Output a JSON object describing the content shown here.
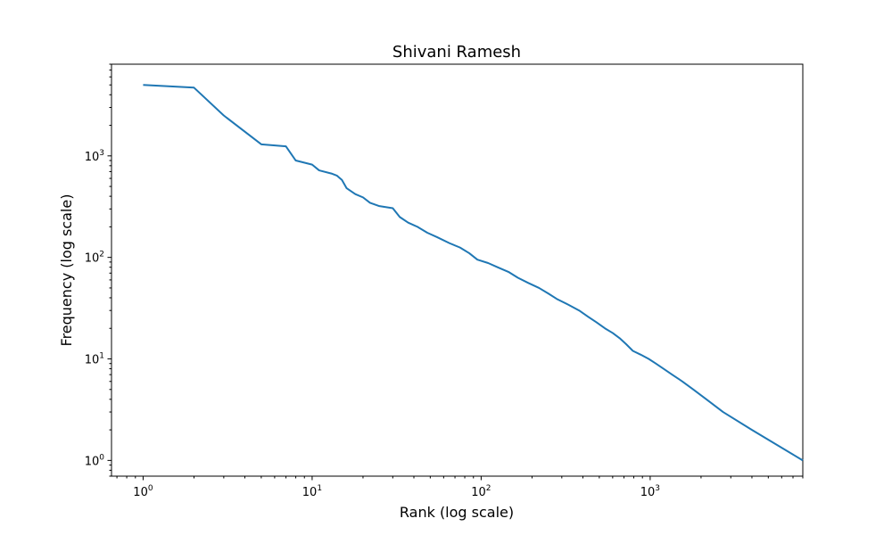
{
  "chart_data": {
    "type": "line",
    "title": "Shivani Ramesh",
    "xlabel": "Rank (log scale)",
    "ylabel": "Frequency (log scale)",
    "xscale": "log",
    "yscale": "log",
    "xlim": [
      0.65,
      8000
    ],
    "ylim": [
      0.7,
      8000
    ],
    "grid": false,
    "xticks": [
      {
        "value": 1,
        "base": "10",
        "exp": "0"
      },
      {
        "value": 10,
        "base": "10",
        "exp": "1"
      },
      {
        "value": 100,
        "base": "10",
        "exp": "2"
      },
      {
        "value": 1000,
        "base": "10",
        "exp": "3"
      }
    ],
    "yticks": [
      {
        "value": 1,
        "base": "10",
        "exp": "0"
      },
      {
        "value": 10,
        "base": "10",
        "exp": "1"
      },
      {
        "value": 100,
        "base": "10",
        "exp": "2"
      },
      {
        "value": 1000,
        "base": "10",
        "exp": "3"
      }
    ],
    "series": [
      {
        "color": "#1f77b4",
        "points": [
          [
            1,
            5000
          ],
          [
            2,
            4700
          ],
          [
            3,
            2500
          ],
          [
            5,
            1300
          ],
          [
            7,
            1240
          ],
          [
            8,
            900
          ],
          [
            10,
            820
          ],
          [
            11,
            720
          ],
          [
            13,
            670
          ],
          [
            14,
            640
          ],
          [
            15,
            580
          ],
          [
            16,
            480
          ],
          [
            18,
            420
          ],
          [
            20,
            390
          ],
          [
            22,
            345
          ],
          [
            25,
            320
          ],
          [
            30,
            305
          ],
          [
            33,
            250
          ],
          [
            37,
            220
          ],
          [
            42,
            200
          ],
          [
            48,
            175
          ],
          [
            55,
            158
          ],
          [
            65,
            138
          ],
          [
            75,
            125
          ],
          [
            85,
            110
          ],
          [
            95,
            95
          ],
          [
            110,
            88
          ],
          [
            125,
            80
          ],
          [
            145,
            72
          ],
          [
            165,
            63
          ],
          [
            190,
            56
          ],
          [
            220,
            50
          ],
          [
            250,
            44
          ],
          [
            280,
            39
          ],
          [
            330,
            34
          ],
          [
            380,
            30
          ],
          [
            430,
            26
          ],
          [
            480,
            23
          ],
          [
            540,
            20
          ],
          [
            600,
            18
          ],
          [
            660,
            16
          ],
          [
            720,
            14
          ],
          [
            790,
            12
          ],
          [
            880,
            11
          ],
          [
            980,
            10
          ],
          [
            1080,
            9
          ],
          [
            1200,
            8
          ],
          [
            1350,
            7
          ],
          [
            1550,
            6
          ],
          [
            1800,
            5
          ],
          [
            2150,
            4
          ],
          [
            2700,
            3
          ],
          [
            4000,
            2
          ],
          [
            8000,
            1
          ]
        ]
      }
    ]
  }
}
